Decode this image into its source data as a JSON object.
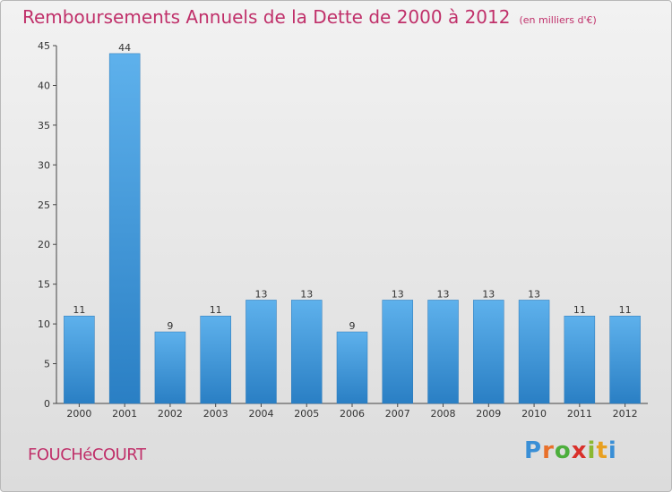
{
  "header": {
    "title": "Remboursements Annuels de la Dette de 2000 à 2012",
    "unit": "(en milliers d'€)"
  },
  "footer": {
    "town": "FOUCHéCOURT",
    "logo_letters": [
      "P",
      "r",
      "o",
      "x",
      "i",
      "t",
      "i"
    ],
    "logo_colors": [
      "#3a8fd6",
      "#e8702a",
      "#4cae3c",
      "#d9302a",
      "#8bb832",
      "#e8a020",
      "#3a8fd6"
    ]
  },
  "chart_data": {
    "type": "bar",
    "categories": [
      "2000",
      "2001",
      "2002",
      "2003",
      "2004",
      "2005",
      "2006",
      "2007",
      "2008",
      "2009",
      "2010",
      "2011",
      "2012"
    ],
    "values": [
      11,
      44,
      9,
      11,
      13,
      13,
      9,
      13,
      13,
      13,
      13,
      11,
      11
    ],
    "title": "Remboursements Annuels de la Dette de 2000 à 2012",
    "ylim": [
      0,
      45
    ],
    "yticks": [
      0,
      5,
      10,
      15,
      20,
      25,
      30,
      35,
      40,
      45
    ],
    "grid": false,
    "bar_color": "#3c9ae0",
    "data_labels": true
  }
}
